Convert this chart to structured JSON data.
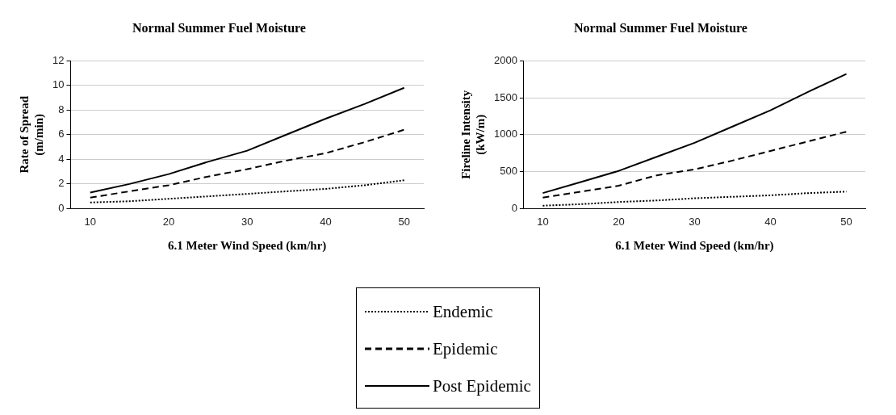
{
  "chart_data": [
    {
      "type": "line",
      "title": "Normal Summer Fuel Moisture",
      "xlabel": "6.1 Meter Wind Speed (km/hr)",
      "ylabel": "Rate of Spread (m/min)",
      "categories": [
        "10",
        null,
        "20",
        null,
        "30",
        null,
        "40",
        null,
        "50"
      ],
      "ylim": [
        0,
        12
      ],
      "yticks": [
        0,
        2,
        4,
        6,
        8,
        10,
        12
      ],
      "grid": "y",
      "legend": "bottom",
      "series": [
        {
          "name": "Endemic",
          "color": "#000000",
          "line_style": "dotted",
          "values": [
            0.5,
            0.6,
            0.8,
            1.0,
            1.2,
            1.4,
            1.6,
            1.9,
            2.3
          ]
        },
        {
          "name": "Epidemic",
          "color": "#000000",
          "line_style": "dashed",
          "values": [
            0.9,
            1.4,
            1.9,
            2.6,
            3.2,
            3.9,
            4.5,
            5.4,
            6.4
          ]
        },
        {
          "name": "Post Epidemic",
          "color": "#000000",
          "line_style": "solid",
          "values": [
            1.3,
            2.0,
            2.8,
            3.8,
            4.7,
            6.0,
            7.3,
            8.5,
            9.8
          ]
        }
      ]
    },
    {
      "type": "line",
      "title": "Normal Summer Fuel Moisture",
      "xlabel": "6.1 Meter Wind Speed (km/hr)",
      "ylabel": "Fireline Intensity (kW/m)",
      "categories": [
        "10",
        null,
        "20",
        null,
        "30",
        null,
        "40",
        null,
        "50"
      ],
      "ylim": [
        0,
        2000
      ],
      "yticks": [
        0,
        500,
        1000,
        1500,
        2000
      ],
      "grid": "y",
      "legend": "bottom",
      "series": [
        {
          "name": "Endemic",
          "color": "#000000",
          "line_style": "dotted",
          "values": [
            40,
            60,
            90,
            110,
            140,
            160,
            180,
            210,
            230
          ]
        },
        {
          "name": "Epidemic",
          "color": "#000000",
          "line_style": "dashed",
          "values": [
            150,
            230,
            310,
            450,
            530,
            650,
            780,
            910,
            1040
          ]
        },
        {
          "name": "Post Epidemic",
          "color": "#000000",
          "line_style": "solid",
          "values": [
            210,
            360,
            510,
            700,
            890,
            1110,
            1330,
            1580,
            1820
          ]
        }
      ]
    }
  ]
}
